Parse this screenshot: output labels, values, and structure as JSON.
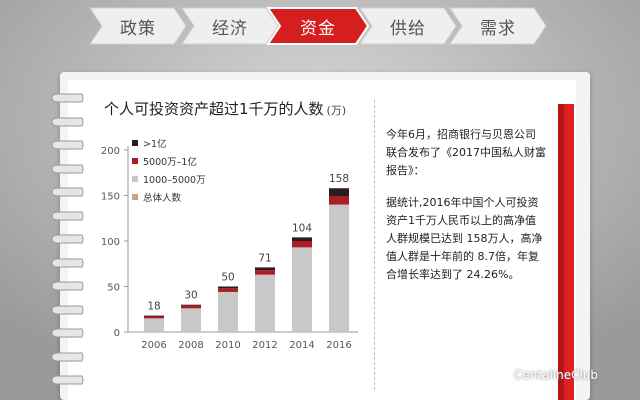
{
  "nav": {
    "tabs": [
      {
        "label": "政策",
        "active": false
      },
      {
        "label": "经济",
        "active": false
      },
      {
        "label": "资金",
        "active": true
      },
      {
        "label": "供给",
        "active": false
      },
      {
        "label": "需求",
        "active": false
      }
    ],
    "inactive_color": "#efefef",
    "active_color": "#d51f1f"
  },
  "chart_data": {
    "type": "bar",
    "title": "个人可投资资产超过1千万的人数",
    "unit": "(万)",
    "categories": [
      "2006",
      "2008",
      "2010",
      "2012",
      "2014",
      "2016"
    ],
    "series": [
      {
        "name": "1000–5000万",
        "color": "#c8c8c8",
        "values": [
          15,
          26,
          44,
          63,
          93,
          140
        ]
      },
      {
        "name": "5000万–1亿",
        "color": "#b01c24",
        "values": [
          2,
          3,
          4,
          5,
          7,
          9
        ]
      },
      {
        "name": ">1亿",
        "color": "#2b1d1d",
        "values": [
          1,
          1,
          2,
          3,
          4,
          9
        ]
      }
    ],
    "totals": [
      18,
      30,
      50,
      71,
      104,
      158
    ],
    "totals_label": "总体人数",
    "totals_color": "#caa37a",
    "yticks": [
      0,
      50,
      100,
      150,
      200
    ],
    "ylim": [
      0,
      200
    ],
    "legend_position": "top-left"
  },
  "text": {
    "para1": "今年6月，招商银行与贝恩公司联合发布了《2017中国私人财富报告》：",
    "para2": "据统计,2016年中国个人可投资资产1千万人民币以上的高净值人群规模已达到 158万人，高净值人群是十年前的 8.7倍，年复合增长率达到了 24.26%。"
  },
  "watermark": "CentalineClub",
  "colors": {
    "accent": "#e02020"
  }
}
